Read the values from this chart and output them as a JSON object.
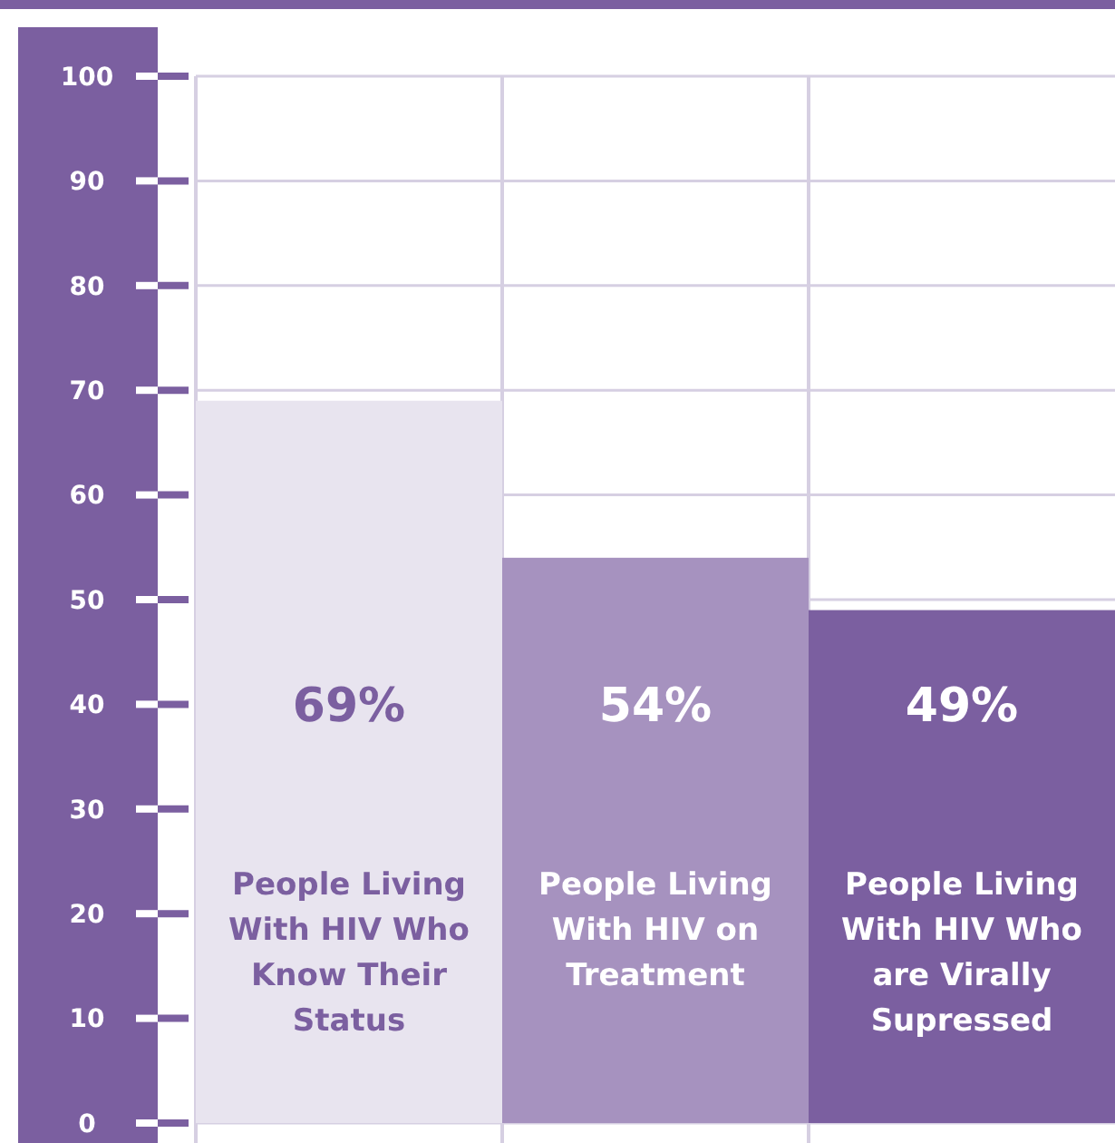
{
  "chart_data": {
    "type": "bar",
    "categories": [
      "People Living With HIV Who Know Their Status",
      "People Living With HIV on Treatment",
      "People Living With HIV Who are Virally Supressed"
    ],
    "values": [
      69,
      54,
      49
    ],
    "colors": [
      "#e8e4ef",
      "#a692bf",
      "#7b5fa0"
    ],
    "value_labels": [
      "69%",
      "54%",
      "49%"
    ],
    "ylim": [
      0,
      100
    ],
    "yticks": [
      0,
      10,
      20,
      30,
      40,
      50,
      60,
      70,
      80,
      90,
      100
    ],
    "grid": true
  }
}
